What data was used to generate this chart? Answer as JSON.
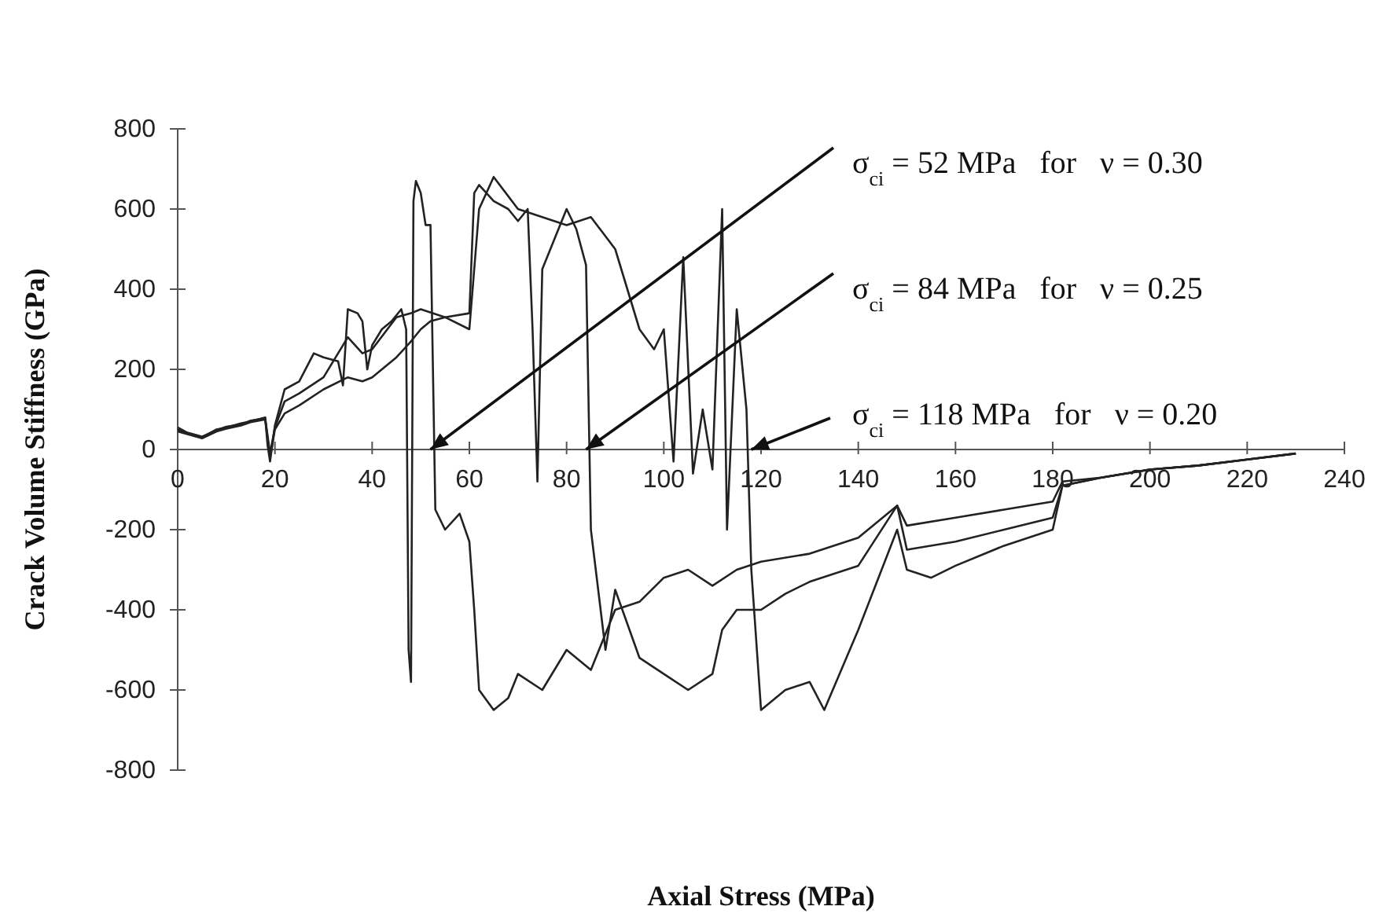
{
  "chart_data": {
    "type": "line",
    "xlabel": "Axial Stress (MPa)",
    "ylabel": "Crack Volume Stiffness (GPa)",
    "xlim": [
      0,
      240
    ],
    "xticks": [
      0,
      20,
      40,
      60,
      80,
      100,
      120,
      140,
      160,
      180,
      200,
      220,
      240
    ],
    "ylim": [
      -800,
      800
    ],
    "yticks": [
      -800,
      -600,
      -400,
      -200,
      0,
      200,
      400,
      600,
      800
    ],
    "grid": false,
    "line_style": "solid",
    "annotations": [
      {
        "text": "σ$_{ci}$ = 52 MPa   for   ν = 0.30",
        "x": 52,
        "y": 0
      },
      {
        "text": "σ$_{ci}$ = 84 MPa   for   ν = 0.25",
        "x": 84,
        "y": 0
      },
      {
        "text": "σ$_{ci}$ = 118 MPa   for   ν = 0.20",
        "x": 118,
        "y": 0
      }
    ],
    "series": [
      {
        "color": "#222222",
        "x": [
          0,
          2,
          5,
          8,
          10,
          13,
          15,
          18,
          18.5,
          19,
          20,
          22,
          25,
          28,
          30,
          33,
          34,
          35,
          37,
          38,
          39,
          40,
          42,
          44,
          46,
          47,
          47.5,
          48,
          48.5,
          49,
          50,
          51,
          52,
          53,
          55,
          58,
          60,
          61,
          62,
          65,
          68,
          70,
          75,
          80,
          85,
          90,
          95,
          100,
          105,
          110,
          115,
          120,
          130,
          140,
          148,
          150,
          160,
          170,
          180,
          182,
          190,
          200,
          210,
          220,
          230
        ],
        "values": [
          50,
          40,
          30,
          50,
          55,
          65,
          70,
          80,
          10,
          -30,
          60,
          150,
          170,
          240,
          230,
          220,
          160,
          350,
          340,
          320,
          200,
          260,
          300,
          320,
          350,
          300,
          -500,
          -580,
          620,
          670,
          640,
          560,
          560,
          -150,
          -200,
          -160,
          -230,
          -400,
          -600,
          -650,
          -620,
          -560,
          -600,
          -500,
          -550,
          -400,
          -380,
          -320,
          -300,
          -340,
          -300,
          -280,
          -260,
          -220,
          -140,
          -190,
          -170,
          -150,
          -130,
          -80,
          -70,
          -50,
          -40,
          -25,
          -10
        ]
      },
      {
        "color": "#222222",
        "x": [
          0,
          2,
          5,
          8,
          10,
          13,
          15,
          18,
          19,
          20,
          22,
          25,
          30,
          35,
          38,
          40,
          45,
          48,
          50,
          55,
          60,
          61,
          62,
          65,
          68,
          70,
          72,
          73,
          74,
          75,
          80,
          82,
          84,
          85,
          88,
          90,
          95,
          100,
          105,
          110,
          112,
          115,
          120,
          125,
          130,
          140,
          148,
          150,
          160,
          170,
          180,
          182,
          190,
          200,
          210,
          220,
          230
        ],
        "values": [
          55,
          42,
          32,
          48,
          57,
          62,
          72,
          78,
          -10,
          55,
          120,
          140,
          180,
          280,
          240,
          250,
          330,
          340,
          350,
          330,
          340,
          640,
          660,
          620,
          600,
          570,
          600,
          300,
          -80,
          450,
          600,
          550,
          460,
          -200,
          -500,
          -350,
          -520,
          -560,
          -600,
          -560,
          -450,
          -400,
          -400,
          -360,
          -330,
          -290,
          -140,
          -250,
          -230,
          -200,
          -170,
          -90,
          -70,
          -50,
          -40,
          -25,
          -10
        ]
      },
      {
        "color": "#222222",
        "x": [
          0,
          2,
          5,
          8,
          10,
          13,
          15,
          18,
          19,
          20,
          22,
          25,
          30,
          35,
          38,
          40,
          45,
          48,
          50,
          52,
          55,
          60,
          62,
          65,
          70,
          75,
          80,
          85,
          90,
          95,
          98,
          100,
          102,
          104,
          106,
          108,
          110,
          112,
          113,
          115,
          117,
          118,
          120,
          125,
          130,
          133,
          140,
          148,
          150,
          155,
          160,
          170,
          180,
          182,
          190,
          200,
          210,
          220,
          230
        ],
        "values": [
          45,
          38,
          28,
          45,
          52,
          60,
          68,
          75,
          -20,
          50,
          90,
          110,
          150,
          180,
          170,
          180,
          230,
          270,
          300,
          320,
          330,
          300,
          600,
          680,
          600,
          580,
          560,
          580,
          500,
          300,
          250,
          300,
          -30,
          480,
          -60,
          100,
          -50,
          600,
          -200,
          350,
          100,
          -300,
          -650,
          -600,
          -580,
          -650,
          -450,
          -200,
          -300,
          -320,
          -290,
          -240,
          -200,
          -90,
          -70,
          -50,
          -40,
          -25,
          -10
        ]
      }
    ]
  }
}
